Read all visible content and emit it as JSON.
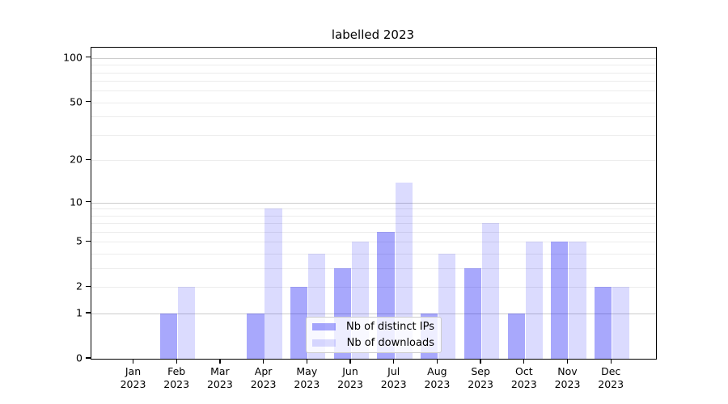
{
  "title": "labelled 2023",
  "chart_data": {
    "type": "bar",
    "title": "labelled 2023",
    "categories": [
      "Jan",
      "Feb",
      "Mar",
      "Apr",
      "May",
      "Jun",
      "Jul",
      "Aug",
      "Sep",
      "Oct",
      "Nov",
      "Dec"
    ],
    "year_label": "2023",
    "series": [
      {
        "name": "Nb of distinct IPs",
        "color": "rgba(0,0,245,0.34)",
        "values": [
          0,
          1,
          0,
          1,
          2,
          3,
          6,
          1,
          3,
          1,
          5,
          2
        ]
      },
      {
        "name": "Nb of downloads",
        "color": "rgba(0,0,245,0.14)",
        "values": [
          0,
          2,
          0,
          9,
          4,
          5,
          14,
          4,
          7,
          5,
          5,
          2
        ]
      }
    ],
    "xlabel": "",
    "ylabel": "",
    "yscale": "log1p",
    "ylim": [
      0,
      120
    ],
    "yticks": [
      0,
      1,
      2,
      5,
      10,
      20,
      50,
      100
    ],
    "major_gridline_values": [
      1,
      10,
      100
    ],
    "minor_gridline_values": [
      2,
      3,
      4,
      5,
      6,
      7,
      8,
      9,
      20,
      30,
      40,
      50,
      60,
      70,
      80,
      90
    ],
    "grid": true,
    "legend_position": "lower center"
  },
  "colors": {
    "background": "#ffffff",
    "spine": "#000000",
    "major_grid": "#cccccc",
    "minor_grid": "#ececec",
    "bar_dark": "rgba(0,0,245,0.34)",
    "bar_light": "rgba(0,0,245,0.14)"
  }
}
